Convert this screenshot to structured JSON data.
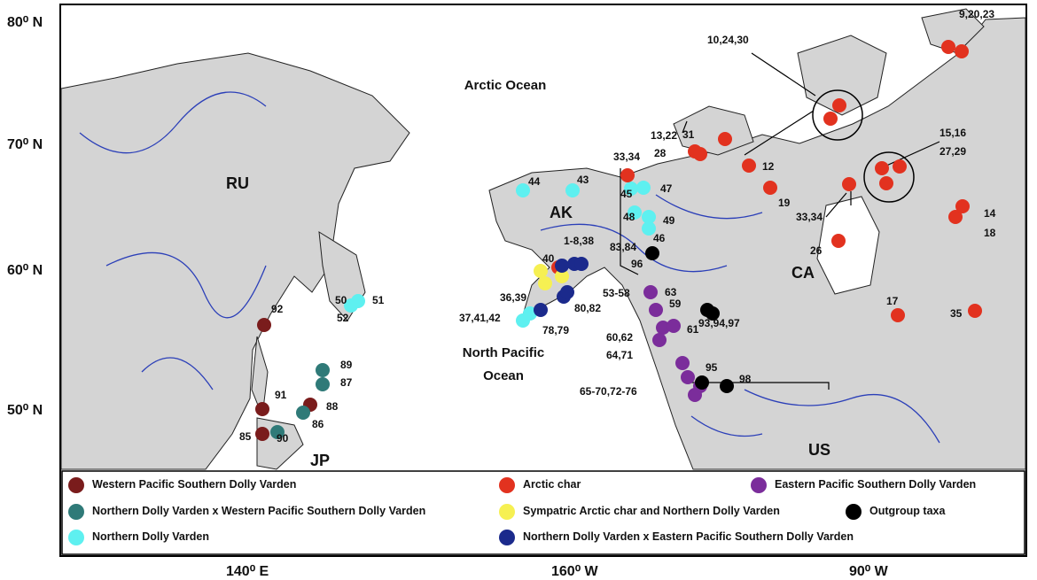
{
  "lat_labels": [
    "80⁰ N",
    "70⁰ N",
    "60⁰ N",
    "50⁰ N"
  ],
  "lon_labels": [
    "140⁰ E",
    "160⁰ W",
    "90⁰ W"
  ],
  "regions": [
    "RU",
    "AK",
    "CA",
    "US",
    "JP"
  ],
  "oceans": [
    "Arctic Ocean",
    "North Pacific Ocean"
  ],
  "site_labels": [
    "92",
    "50",
    "51",
    "52",
    "89",
    "87",
    "91",
    "88",
    "86",
    "85",
    "90",
    "44",
    "43",
    "33,34",
    "45",
    "47",
    "48",
    "49",
    "46",
    "1-8,38",
    "83,84",
    "40",
    "36,39",
    "37,41,42",
    "80,82",
    "78,79",
    "96",
    "53-58",
    "63",
    "59",
    "61",
    "60,62",
    "64,71",
    "95",
    "65-70,72-76",
    "98",
    "93,94,97",
    "31",
    "13,22",
    "28",
    "12",
    "19",
    "33,34",
    "26",
    "17",
    "35",
    "14",
    "18",
    "15,16",
    "27,29",
    "10,24,30",
    "9,20,23"
  ],
  "legend": [
    {
      "label": "Western Pacific Southern Dolly Varden",
      "color": "#7a1c1c"
    },
    {
      "label": "Northern Dolly Varden x Western Pacific Southern Dolly Varden",
      "color": "#2f7a78"
    },
    {
      "label": "Northern Dolly Varden",
      "color": "#5ef0f0"
    },
    {
      "label": "Arctic char",
      "color": "#e2321f"
    },
    {
      "label": "Sympatric Arctic char and Northern Dolly Varden",
      "color": "#f6f052"
    },
    {
      "label": "Northern Dolly Varden x Eastern Pacific Southern Dolly Varden",
      "color": "#1b2a8c"
    },
    {
      "label": "Eastern Pacific Southern Dolly Varden",
      "color": "#7b2d9b"
    },
    {
      "label": "Outgroup taxa",
      "color": "#000000"
    }
  ]
}
